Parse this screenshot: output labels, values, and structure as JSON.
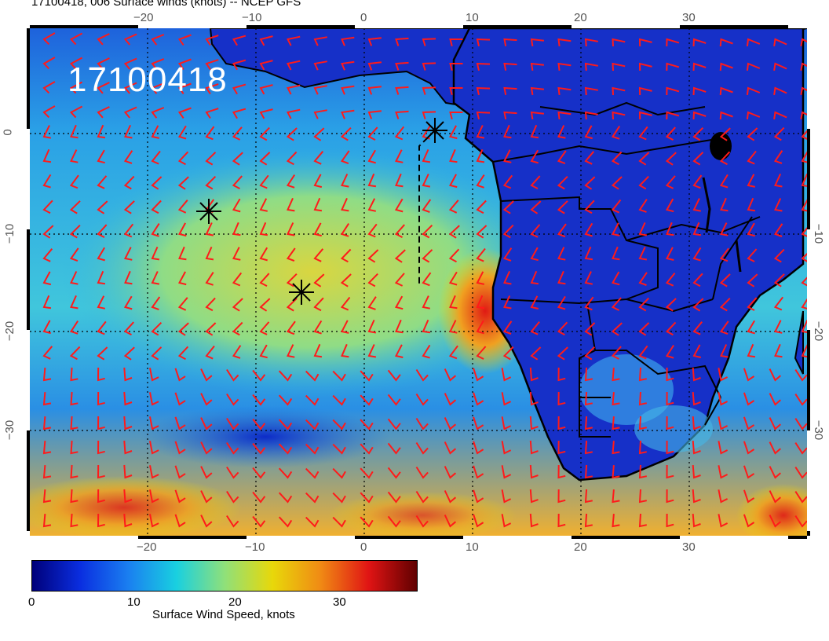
{
  "title": "17100418, 006 Surface winds (knots) -- NCEP GFS",
  "date_stamp": "17100418",
  "axes": {
    "lon_ticks": [
      "−20",
      "−10",
      "0",
      "10",
      "20",
      "30"
    ],
    "lat_ticks": [
      "0",
      "−10",
      "−20",
      "−30"
    ]
  },
  "colorbar": {
    "title": "Surface Wind Speed, knots",
    "ticks": [
      "0",
      "10",
      "20",
      "30"
    ],
    "range": [
      0,
      38
    ],
    "colors": [
      "#00007a",
      "#0a2ee0",
      "#1a7ff0",
      "#19d0e0",
      "#8fe07a",
      "#e8d80a",
      "#f08a14",
      "#e01414",
      "#600000"
    ]
  },
  "colors": {
    "land": "#1630c8",
    "ocean_mid": "#2fa8e6",
    "ocean_high": "#c8d850",
    "barbs": "#ff1a1a",
    "coastline": "#000000"
  },
  "markers": [
    "storm-marker",
    "storm-marker",
    "storm-marker"
  ]
}
